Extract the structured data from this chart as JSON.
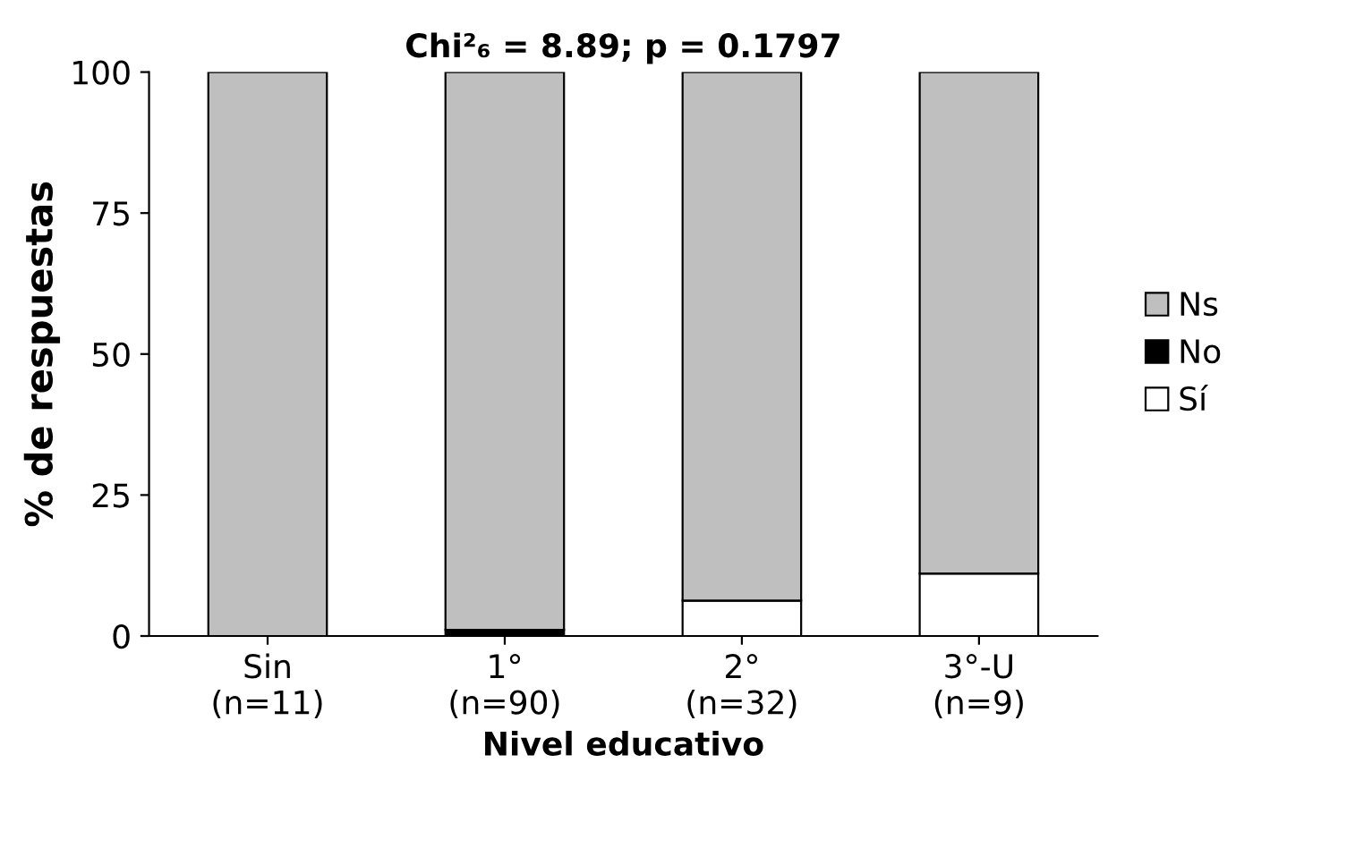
{
  "chart_data": {
    "type": "bar",
    "stacked": true,
    "title": "Chi²₆ = 8.89; p = 0.1797",
    "xlabel": "Nivel educativo",
    "ylabel": "% de respuestas",
    "categories": [
      "Sin\n(n=11)",
      "1°\n(n=90)",
      "2°\n(n=32)",
      "3°-U\n(n=9)"
    ],
    "series": [
      {
        "name": "Sí",
        "color": "#ffffff",
        "values": [
          0,
          0,
          6.3,
          11.1
        ]
      },
      {
        "name": "No",
        "color": "#000000",
        "values": [
          0,
          1.1,
          0,
          0
        ]
      },
      {
        "name": "Ns",
        "color": "#bfbfbf",
        "values": [
          100,
          98.9,
          93.7,
          88.9
        ]
      }
    ],
    "ylim": [
      0,
      100
    ],
    "yticks": [
      0,
      25,
      50,
      75,
      100
    ],
    "grid": false,
    "legend": "right"
  }
}
